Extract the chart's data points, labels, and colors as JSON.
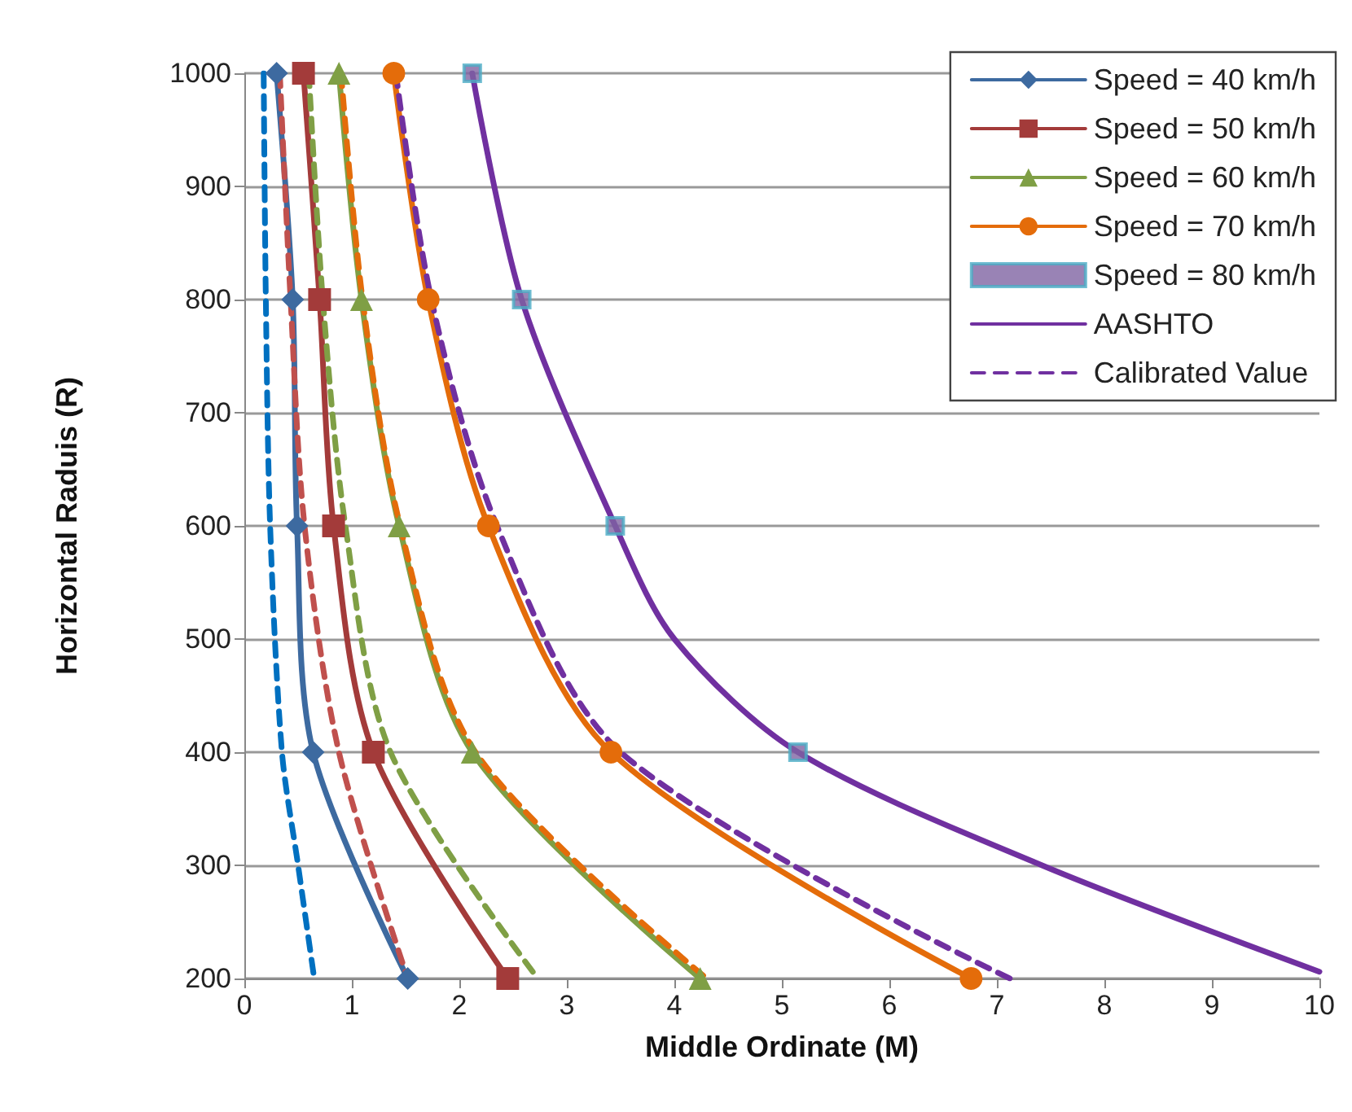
{
  "chart_data": {
    "type": "line",
    "xlabel": "Middle Ordinate (M)",
    "ylabel": "Horizontal Raduis (R)",
    "xlim": [
      0,
      10
    ],
    "xticks": [
      0,
      1,
      2,
      3,
      4,
      5,
      6,
      7,
      8,
      9,
      10
    ],
    "ylim": [
      200,
      1000
    ],
    "yticks": [
      200,
      300,
      400,
      500,
      600,
      700,
      800,
      900,
      1000
    ],
    "grid": "y",
    "legend": "top right",
    "series": [
      {
        "name": "Speed = 40 km/h",
        "color": "#3d6aa0",
        "marker": "diamond",
        "line_style": "solid",
        "x": [
          0.3,
          0.45,
          0.49,
          0.64,
          1.52
        ],
        "values": [
          1000,
          800,
          600,
          400,
          200
        ]
      },
      {
        "name": "Speed = 50 km/h",
        "color": "#a33b3a",
        "marker": "square",
        "line_style": "solid",
        "x": [
          0.55,
          0.7,
          0.83,
          1.2,
          2.45
        ],
        "values": [
          1000,
          800,
          600,
          400,
          200
        ]
      },
      {
        "name": "Speed = 60 km/h",
        "color": "#7f9f45",
        "marker": "triangle",
        "line_style": "solid",
        "x": [
          0.88,
          1.09,
          1.44,
          2.12,
          4.24
        ],
        "values": [
          1000,
          800,
          600,
          400,
          200
        ]
      },
      {
        "name": "Speed = 70 km/h",
        "color": "#e46c0a",
        "marker": "circle",
        "line_style": "solid",
        "x": [
          1.39,
          1.71,
          2.27,
          3.41,
          6.76
        ],
        "values": [
          1000,
          800,
          600,
          400,
          200
        ]
      },
      {
        "name": "Speed = 80 km/h",
        "type": "scatter",
        "color": "#4bacc6",
        "marker": "square",
        "x": [
          2.12,
          2.58,
          3.45,
          5.15
        ],
        "values": [
          1000,
          800,
          600,
          400
        ]
      },
      {
        "name": "AASHTO",
        "color": "#7030a0",
        "marker": "none",
        "line_style": "solid",
        "x": [
          2.12,
          2.58,
          3.45,
          4.0,
          5.15,
          7.42,
          10
        ],
        "values": [
          1000,
          800,
          600,
          500,
          400,
          300,
          206
        ]
      },
      {
        "name": "Calibrated Value",
        "color": "#7030a0",
        "marker": "none",
        "line_style": "dashed",
        "x": [
          1.41,
          1.74,
          2.35,
          3.5,
          7.12
        ],
        "values": [
          1000,
          800,
          600,
          400,
          200
        ]
      },
      {
        "color": "#0070c0",
        "marker": "none",
        "line_style": "dashed",
        "x": [
          0.18,
          0.2,
          0.24,
          0.35,
          0.5,
          0.65
        ],
        "values": [
          1000,
          800,
          600,
          400,
          300,
          200
        ]
      },
      {
        "color": "#c0504d",
        "marker": "none",
        "line_style": "dashed",
        "x": [
          0.33,
          0.43,
          0.56,
          0.88,
          1.52
        ],
        "values": [
          1000,
          800,
          600,
          400,
          200
        ]
      },
      {
        "color": "#7f9f45",
        "marker": "none",
        "line_style": "dashed",
        "x": [
          0.6,
          0.73,
          0.94,
          1.36,
          2.73
        ],
        "values": [
          1000,
          800,
          600,
          400,
          200
        ]
      },
      {
        "color": "#e46c0a",
        "marker": "none",
        "line_style": "dashed",
        "x": [
          0.9,
          1.1,
          1.45,
          2.15,
          4.3
        ],
        "values": [
          1000,
          800,
          600,
          400,
          200
        ]
      }
    ]
  }
}
